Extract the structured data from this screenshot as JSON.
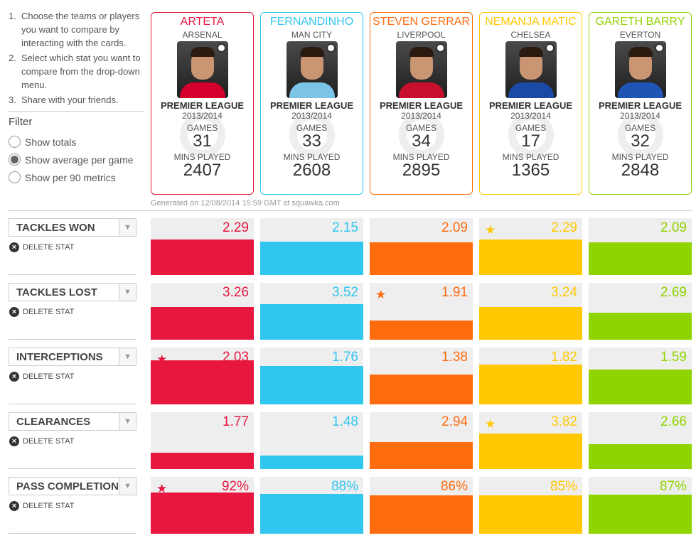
{
  "instructions": [
    {
      "num": "1.",
      "text": "Choose the teams or players you want to compare by interacting with the cards."
    },
    {
      "num": "2.",
      "text": "Select which stat you want to compare from the drop-down menu."
    },
    {
      "num": "3.",
      "text": "Share with your friends."
    }
  ],
  "filter": {
    "title": "Filter",
    "options": [
      {
        "label": "Show totals",
        "selected": false
      },
      {
        "label": "Show average per game",
        "selected": true
      },
      {
        "label": "Show per 90 metrics",
        "selected": false
      }
    ]
  },
  "players": [
    {
      "name": "ARTETA",
      "team": "ARSENAL",
      "league": "PREMIER LEAGUE",
      "season": "2013/2014",
      "games_label": "GAMES",
      "games": "31",
      "mins_label": "MINS PLAYED",
      "mins": "2407",
      "color": "#e8173f",
      "shirt": "#d4002b"
    },
    {
      "name": "FERNANDINHO",
      "team": "MAN CITY",
      "league": "PREMIER LEAGUE",
      "season": "2013/2014",
      "games_label": "GAMES",
      "games": "33",
      "mins_label": "MINS PLAYED",
      "mins": "2608",
      "color": "#31c6f0",
      "shirt": "#7cc3e8"
    },
    {
      "name": "STEVEN GERRAR",
      "team": "LIVERPOOL",
      "league": "PREMIER LEAGUE",
      "season": "2013/2014",
      "games_label": "GAMES",
      "games": "34",
      "mins_label": "MINS PLAYED",
      "mins": "2895",
      "color": "#ff6b0f",
      "shirt": "#c8102e"
    },
    {
      "name": "NEMANJA MATIC",
      "team": "CHELSEA",
      "league": "PREMIER LEAGUE",
      "season": "2013/2014",
      "games_label": "GAMES",
      "games": "17",
      "mins_label": "MINS PLAYED",
      "mins": "1365",
      "color": "#ffc800",
      "shirt": "#1a4aa6"
    },
    {
      "name": "GARETH BARRY",
      "team": "EVERTON",
      "league": "PREMIER LEAGUE",
      "season": "2013/2014",
      "games_label": "GAMES",
      "games": "32",
      "mins_label": "MINS PLAYED",
      "mins": "2848",
      "color": "#8fd400",
      "shirt": "#2055b5"
    }
  ],
  "generated": "Generated on 12/08/2014 15:59 GMT at squawka.com",
  "delete_label": "DELETE STAT",
  "stats": [
    {
      "name": "TACKLES WON",
      "values": [
        "2.29",
        "2.15",
        "2.09",
        "2.29",
        "2.09"
      ],
      "fractions": [
        0.63,
        0.59,
        0.57,
        0.63,
        0.57
      ],
      "star": [
        false,
        false,
        false,
        true,
        false
      ]
    },
    {
      "name": "TACKLES LOST",
      "values": [
        "3.26",
        "3.52",
        "1.91",
        "3.24",
        "2.69"
      ],
      "fractions": [
        0.58,
        0.63,
        0.34,
        0.58,
        0.48
      ],
      "star": [
        false,
        false,
        true,
        false,
        false
      ]
    },
    {
      "name": "INTERCEPTIONS",
      "values": [
        "2.03",
        "1.76",
        "1.38",
        "1.82",
        "1.59"
      ],
      "fractions": [
        0.78,
        0.68,
        0.53,
        0.7,
        0.61
      ],
      "star": [
        true,
        false,
        false,
        false,
        false
      ]
    },
    {
      "name": "CLEARANCES",
      "values": [
        "1.77",
        "1.48",
        "2.94",
        "3.82",
        "2.66"
      ],
      "fractions": [
        0.29,
        0.24,
        0.48,
        0.63,
        0.44
      ],
      "star": [
        false,
        false,
        false,
        true,
        false
      ]
    },
    {
      "name": "PASS COMPLETION",
      "values": [
        "92%",
        "88%",
        "86%",
        "85%",
        "87%"
      ],
      "fractions": [
        0.73,
        0.7,
        0.68,
        0.67,
        0.69
      ],
      "star": [
        true,
        false,
        false,
        false,
        false
      ]
    }
  ],
  "icons": {
    "star": "star-icon",
    "delete": "close-circle-icon",
    "dropdown": "chevron-down-icon",
    "logo": "squawka-logo-icon"
  }
}
